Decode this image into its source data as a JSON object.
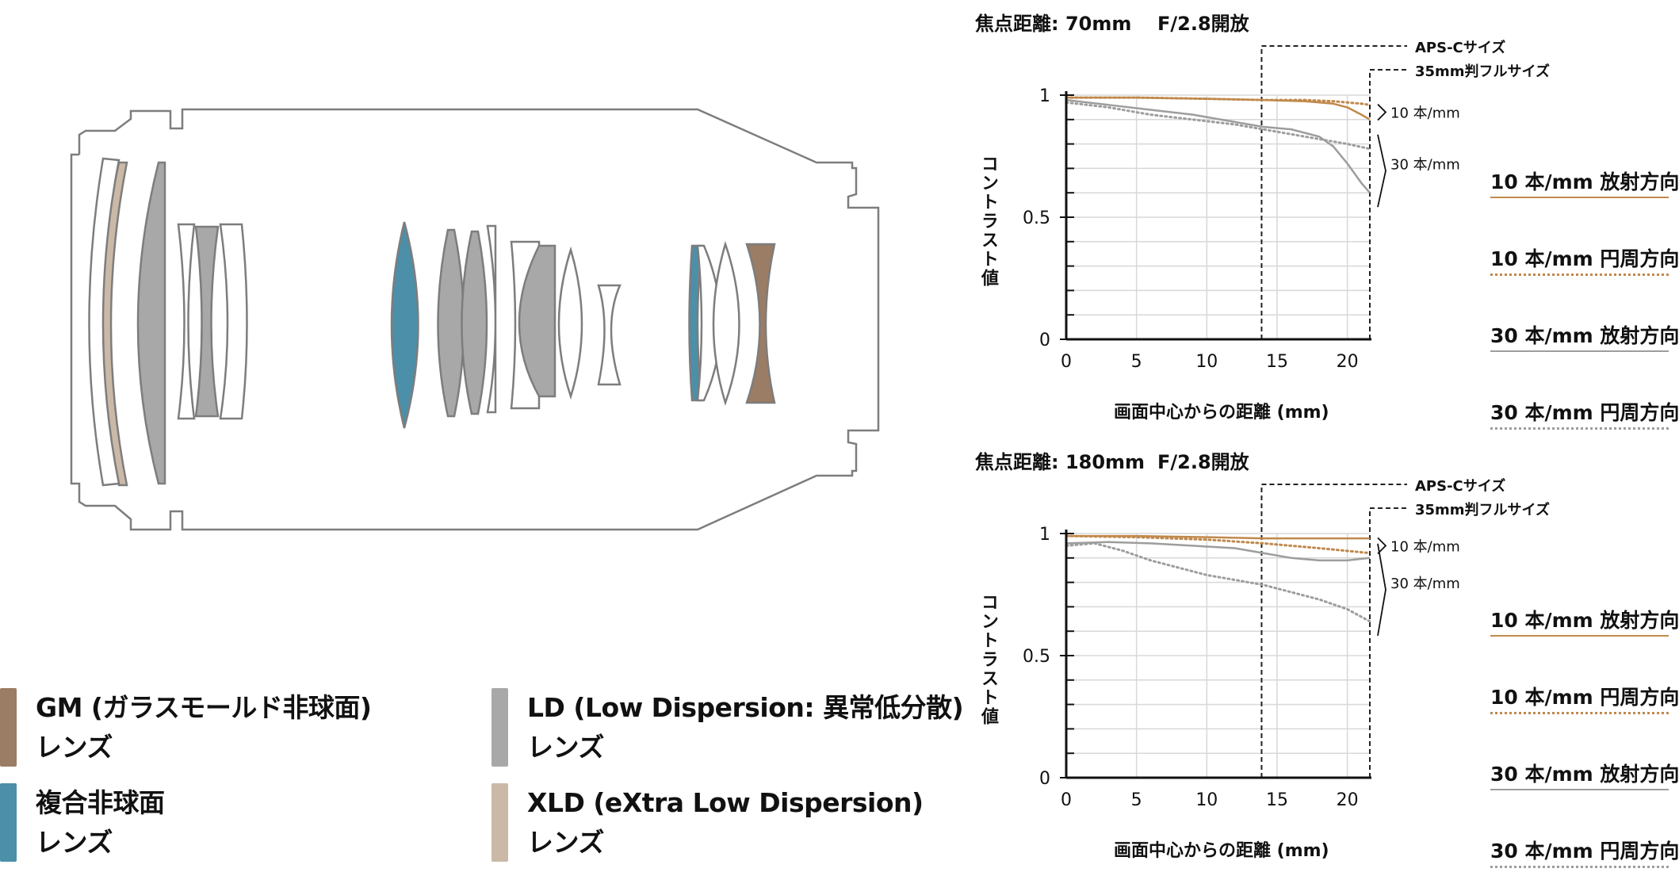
{
  "legend": [
    {
      "color": "#9b7c64",
      "line1": "GM (ガラスモールド非球面)",
      "line2": "レンズ"
    },
    {
      "color": "#a8a8a8",
      "line1": "LD (Low Dispersion: 異常低分散)",
      "line2": "レンズ"
    },
    {
      "color": "#4c8fa9",
      "line1": "複合非球面",
      "line2": "レンズ"
    },
    {
      "color": "#cbb9a8",
      "line1": "XLD (eXtra Low Dispersion)",
      "line2": "レンズ"
    }
  ],
  "colors": {
    "orange": "#c0894c",
    "gray": "#9d9d9d"
  },
  "chart_data": [
    {
      "type": "line",
      "title_focal": "焦点距離: 70mm",
      "title_aperture": "F/2.8開放",
      "xlabel": "画面中心からの距離 (mm)",
      "ylabel": "コントラスト値",
      "xlim": [
        0,
        21.6
      ],
      "ylim": [
        0,
        1
      ],
      "xticks": [
        "0",
        "5",
        "10",
        "15",
        "20"
      ],
      "yticks": [
        "0",
        "0.5",
        "1"
      ],
      "grid": true,
      "markers": {
        "aps_c_x": 13.9,
        "full_frame_x": 21.6,
        "aps_c_label": "APS-Cサイズ",
        "full_frame_label": "35mm判フルサイズ"
      },
      "annotations": [
        "10 本/mm",
        "30 本/mm"
      ],
      "series": [
        {
          "name": "10 本/mm 放射方向",
          "color": "#c0894c",
          "style": "solid",
          "x": [
            0,
            5,
            10,
            14,
            17,
            19,
            20,
            21,
            21.6
          ],
          "y": [
            0.99,
            0.99,
            0.985,
            0.98,
            0.975,
            0.965,
            0.95,
            0.92,
            0.9
          ]
        },
        {
          "name": "10 本/mm 円周方向",
          "color": "#c0894c",
          "style": "dotted",
          "x": [
            0,
            5,
            10,
            14,
            17,
            19,
            20,
            21,
            21.6
          ],
          "y": [
            0.99,
            0.99,
            0.985,
            0.98,
            0.98,
            0.975,
            0.97,
            0.965,
            0.96
          ]
        },
        {
          "name": "30 本/mm 放射方向",
          "color": "#9d9d9d",
          "style": "solid",
          "x": [
            0,
            3,
            6,
            9,
            12,
            14,
            16,
            18,
            19,
            20,
            21,
            21.6
          ],
          "y": [
            0.98,
            0.96,
            0.94,
            0.92,
            0.89,
            0.87,
            0.86,
            0.83,
            0.79,
            0.72,
            0.64,
            0.6
          ]
        },
        {
          "name": "30 本/mm 円周方向",
          "color": "#9d9d9d",
          "style": "dotted",
          "x": [
            0,
            3,
            6,
            9,
            12,
            14,
            16,
            18,
            20,
            21.6
          ],
          "y": [
            0.97,
            0.95,
            0.92,
            0.9,
            0.88,
            0.86,
            0.84,
            0.82,
            0.8,
            0.78
          ]
        }
      ]
    },
    {
      "type": "line",
      "title_focal": "焦点距離: 180mm",
      "title_aperture": "F/2.8開放",
      "xlabel": "画面中心からの距離 (mm)",
      "ylabel": "コントラスト値",
      "xlim": [
        0,
        21.6
      ],
      "ylim": [
        0,
        1
      ],
      "xticks": [
        "0",
        "5",
        "10",
        "15",
        "20"
      ],
      "yticks": [
        "0",
        "0.5",
        "1"
      ],
      "grid": true,
      "markers": {
        "aps_c_x": 13.9,
        "full_frame_x": 21.6,
        "aps_c_label": "APS-Cサイズ",
        "full_frame_label": "35mm判フルサイズ"
      },
      "annotations": [
        "10 本/mm",
        "30 本/mm"
      ],
      "series": [
        {
          "name": "10 本/mm 放射方向",
          "color": "#c0894c",
          "style": "solid",
          "x": [
            0,
            5,
            10,
            14,
            18,
            21.6
          ],
          "y": [
            0.99,
            0.99,
            0.985,
            0.98,
            0.98,
            0.98
          ]
        },
        {
          "name": "10 本/mm 円周方向",
          "color": "#c0894c",
          "style": "dotted",
          "x": [
            0,
            5,
            10,
            14,
            18,
            21.6
          ],
          "y": [
            0.99,
            0.985,
            0.975,
            0.96,
            0.94,
            0.92
          ]
        },
        {
          "name": "30 本/mm 放射方向",
          "color": "#9d9d9d",
          "style": "solid",
          "x": [
            0,
            3,
            6,
            9,
            12,
            14,
            16,
            18,
            20,
            21.6
          ],
          "y": [
            0.96,
            0.965,
            0.96,
            0.95,
            0.94,
            0.92,
            0.9,
            0.89,
            0.89,
            0.9
          ]
        },
        {
          "name": "30 本/mm 円周方向",
          "color": "#9d9d9d",
          "style": "dotted",
          "x": [
            0,
            2,
            4,
            6,
            8,
            10,
            12,
            14,
            16,
            18,
            20,
            21.6
          ],
          "y": [
            0.95,
            0.96,
            0.93,
            0.89,
            0.86,
            0.83,
            0.81,
            0.79,
            0.76,
            0.73,
            0.69,
            0.64
          ]
        }
      ]
    }
  ]
}
